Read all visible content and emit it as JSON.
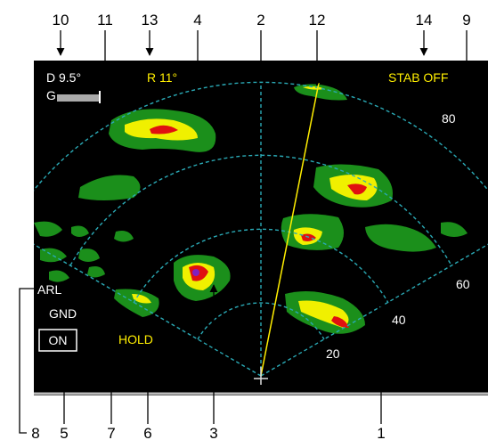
{
  "callouts": {
    "top": [
      "10",
      "11",
      "13",
      "4",
      "2",
      "12",
      "14",
      "9"
    ],
    "bottom": [
      "8",
      "5",
      "7",
      "6",
      "3",
      "1"
    ]
  },
  "screen": {
    "tilt": "D 9.5°",
    "gain": "G",
    "bearing": "R 11°",
    "stab": "STAB OFF",
    "range_labels": [
      "80",
      "60",
      "40",
      "20"
    ],
    "arl": "ARL",
    "gnd": "GND",
    "on": "ON",
    "hold": "HOLD"
  }
}
